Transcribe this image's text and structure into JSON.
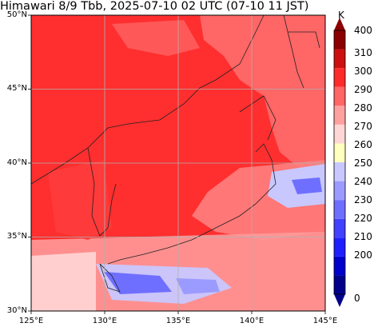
{
  "chart_data": {
    "type": "heatmap",
    "title": "Himawari 8/9 Tbb, 2025-07-10 02 UTC (07-10 11 JST)",
    "colorbar": {
      "unit": "K",
      "ticks": [
        "200",
        "210",
        "220",
        "230",
        "240",
        "250",
        "260",
        "270",
        "280",
        "290",
        "300",
        "310",
        "400",
        "0"
      ],
      "levels": [
        0,
        200,
        210,
        220,
        230,
        240,
        250,
        260,
        270,
        280,
        290,
        300,
        310,
        400
      ],
      "colors": [
        "#00008b",
        "#0000cd",
        "#1e1eff",
        "#4141ff",
        "#6f6fff",
        "#9b9bff",
        "#c8c8ff",
        "#ffffc0",
        "#ffd6d6",
        "#ffa0a0",
        "#ff6666",
        "#ff2a2a",
        "#cc1010",
        "#8b0000"
      ]
    },
    "y_ticks": [
      "50°N",
      "45°N",
      "40°N",
      "35°N",
      "30°N"
    ],
    "x_ticks": [
      "125°E",
      "130°E",
      "135°E",
      "140°E",
      "145°E"
    ],
    "lat_range": [
      30,
      50
    ],
    "lon_range": [
      125,
      145
    ],
    "grid": true
  }
}
